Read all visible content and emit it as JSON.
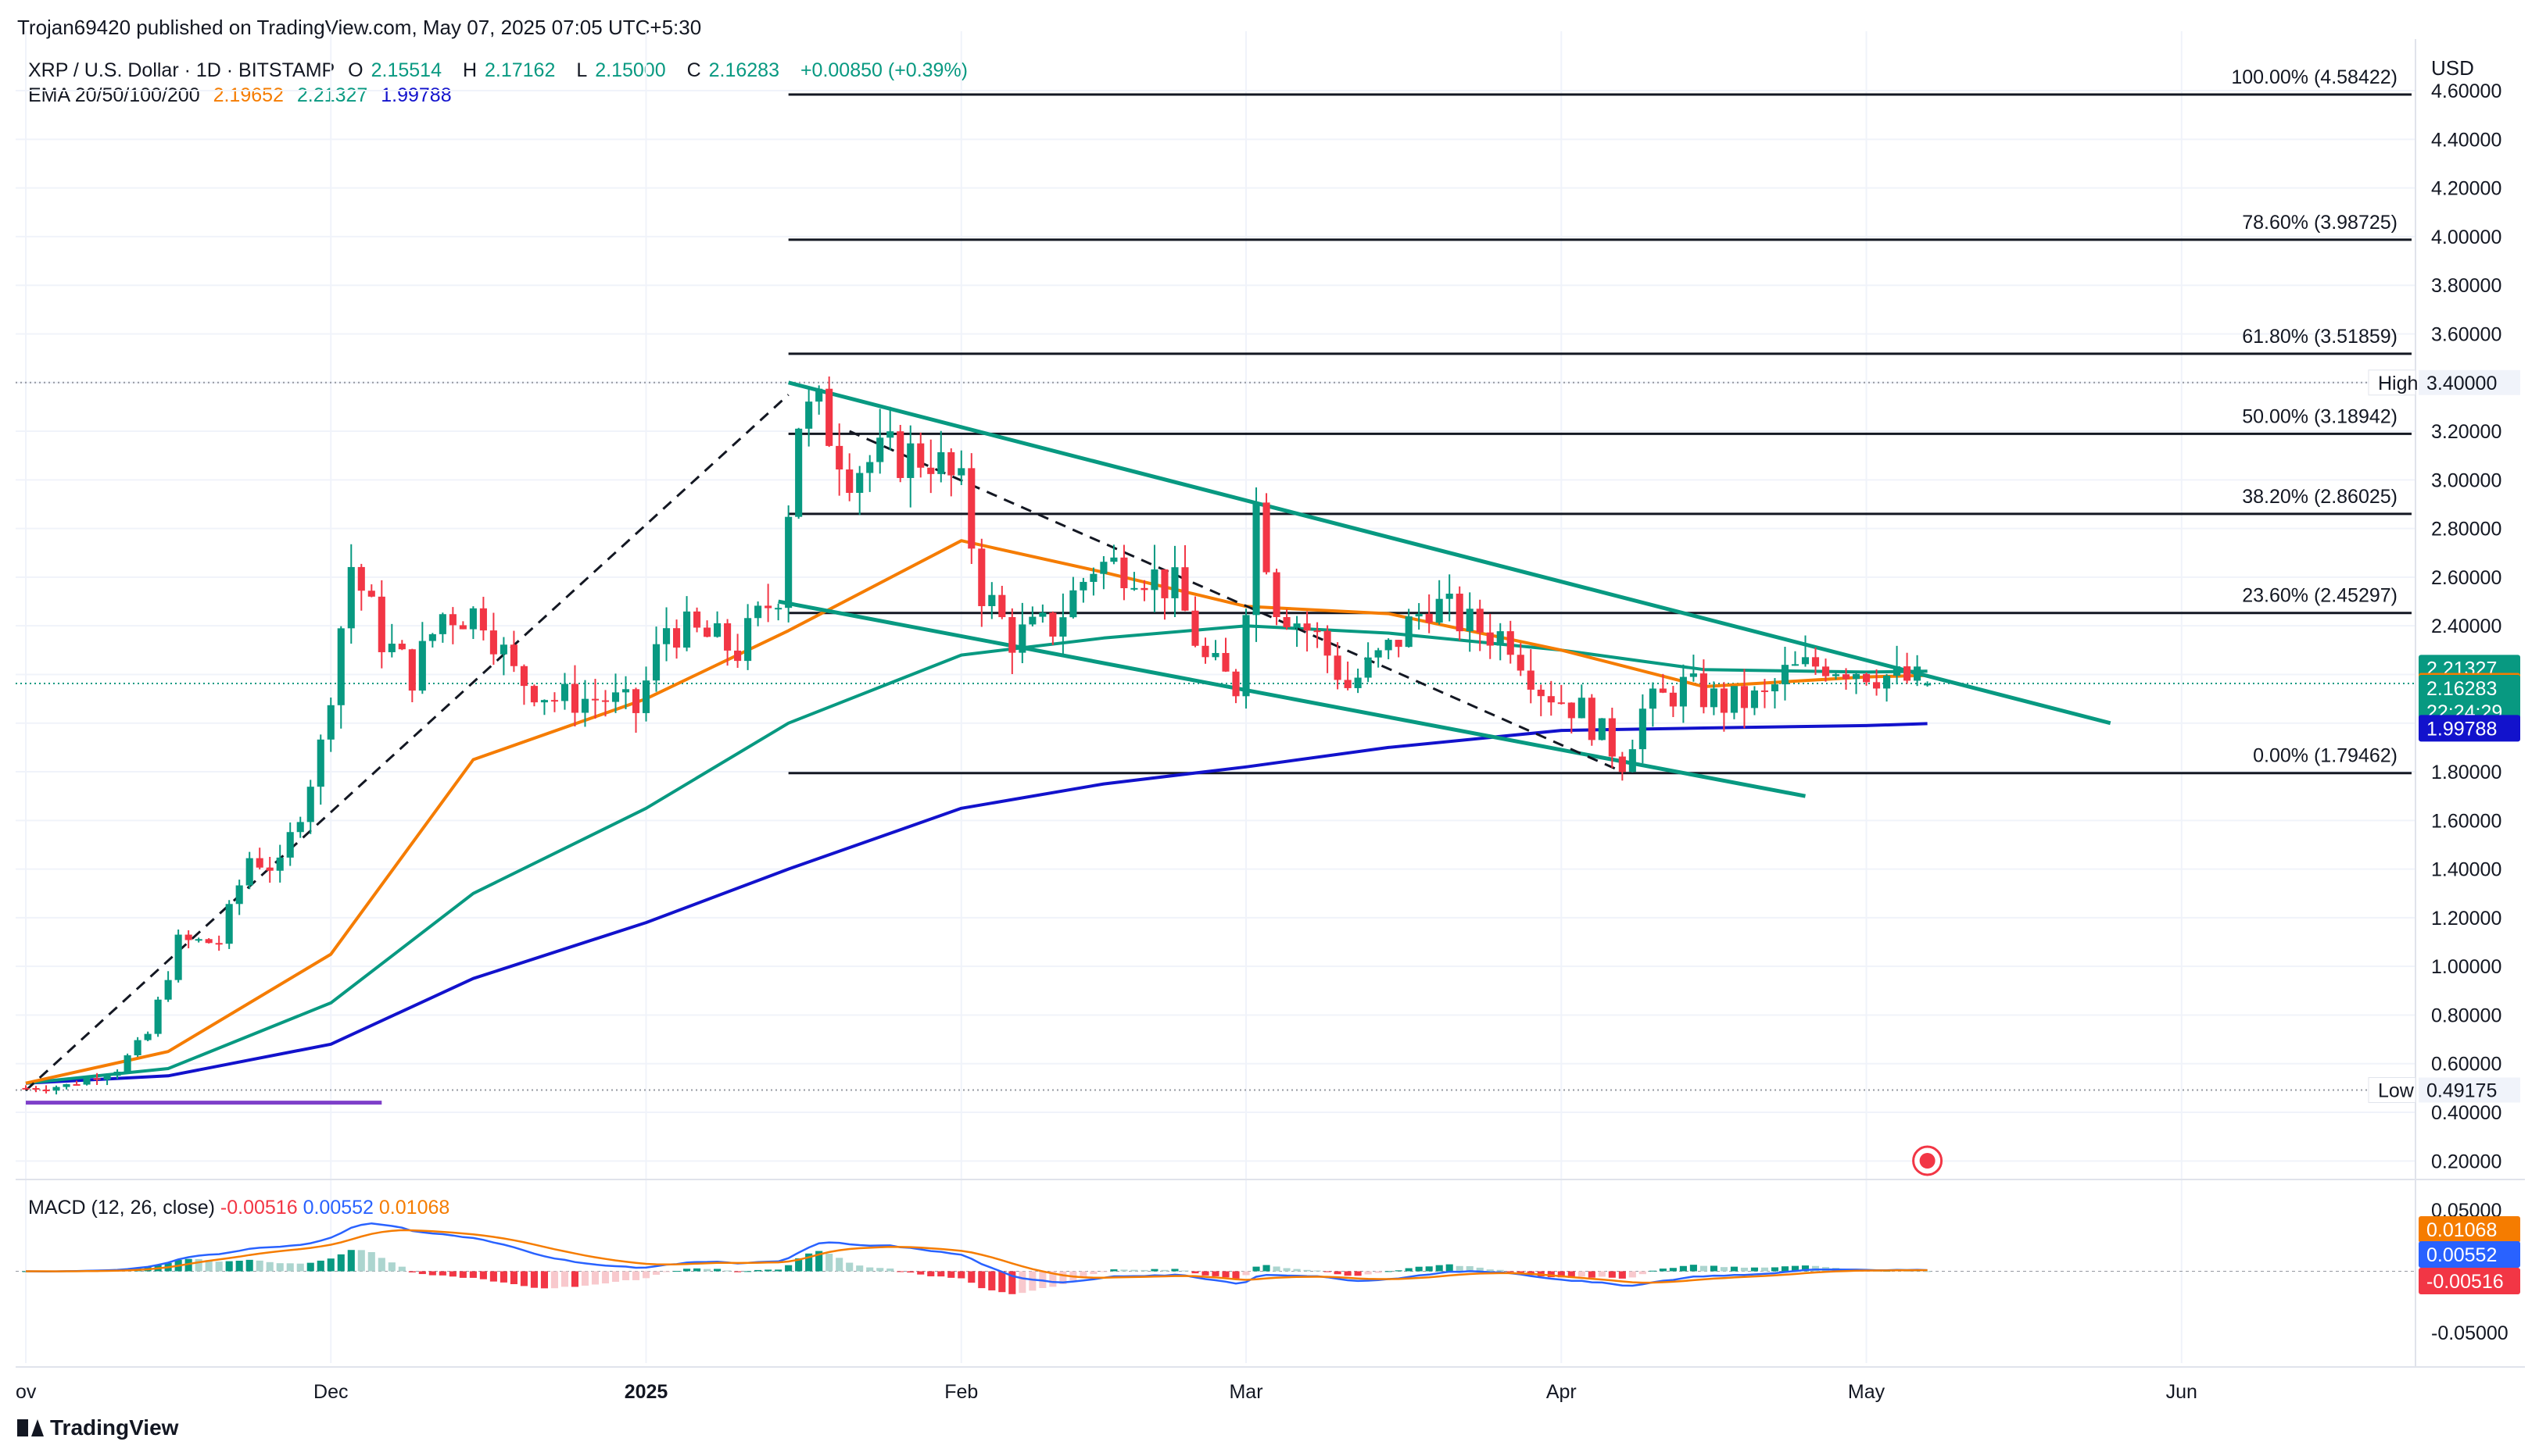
{
  "publisher_line": "Trojan69420 published on TradingView.com, May 07, 2025 07:05 UTC+5:30",
  "symbol": {
    "name": "XRP / U.S. Dollar · 1D · BITSTAMP",
    "open_label": "O",
    "open": "2.15514",
    "high_label": "H",
    "high": "2.17162",
    "low_label": "L",
    "low": "2.15000",
    "close_label": "C",
    "close": "2.16283",
    "change": "+0.00850 (+0.39%)"
  },
  "ema_legend": {
    "label": "EMA 20/50/100/200",
    "v20": "2.19652",
    "v50": "2.21327",
    "v200": "1.99788"
  },
  "macd_legend": {
    "label": "MACD (12, 26, close)",
    "hist": "-0.00516",
    "macd": "0.00552",
    "signal": "0.01068"
  },
  "currency": "USD",
  "brand": "TradingView",
  "colors": {
    "up": "#089981",
    "down": "#f23645",
    "up_light": "#acd5cf",
    "down_light": "#f8c9cd",
    "ema20": "#f57c00",
    "ema50": "#089981",
    "ema200": "#1212cc",
    "purple": "#7e3fc9",
    "grid": "#f0f3fa",
    "text": "#131722",
    "macd_line": "#2962ff",
    "signal_line": "#f57c00"
  },
  "chart_data": {
    "type": "candlestick",
    "title": "XRP / U.S. Dollar · 1D · BITSTAMP",
    "x_ticks": [
      "ov",
      "Dec",
      "2025",
      "Feb",
      "Mar",
      "Apr",
      "May",
      "Jun"
    ],
    "y_ticks": [
      "4.60000",
      "4.40000",
      "4.20000",
      "4.00000",
      "3.80000",
      "3.60000",
      "3.40000",
      "3.20000",
      "3.00000",
      "2.80000",
      "2.60000",
      "2.40000",
      "2.20000",
      "2.00000",
      "1.80000",
      "1.60000",
      "1.40000",
      "1.20000",
      "1.00000",
      "0.80000",
      "0.60000",
      "0.40000",
      "0.20000"
    ],
    "ylim": [
      0.14,
      4.78
    ],
    "ohlc_anchors": [
      {
        "date": "2024-11-01",
        "c": 0.5
      },
      {
        "date": "2024-11-05",
        "c": 0.51
      },
      {
        "date": "2024-11-10",
        "c": 0.58
      },
      {
        "date": "2024-11-13",
        "c": 0.72
      },
      {
        "date": "2024-11-16",
        "c": 1.1
      },
      {
        "date": "2024-11-20",
        "c": 1.1
      },
      {
        "date": "2024-11-23",
        "c": 1.45
      },
      {
        "date": "2024-11-26",
        "c": 1.4
      },
      {
        "date": "2024-11-30",
        "c": 1.9
      },
      {
        "date": "2024-12-03",
        "c": 2.65
      },
      {
        "date": "2024-12-06",
        "c": 2.35
      },
      {
        "date": "2024-12-09",
        "c": 2.2
      },
      {
        "date": "2024-12-12",
        "c": 2.45
      },
      {
        "date": "2024-12-16",
        "c": 2.45
      },
      {
        "date": "2024-12-19",
        "c": 2.2
      },
      {
        "date": "2024-12-23",
        "c": 2.1
      },
      {
        "date": "2024-12-28",
        "c": 2.1
      },
      {
        "date": "2024-12-31",
        "c": 2.05
      },
      {
        "date": "2025-01-03",
        "c": 2.4
      },
      {
        "date": "2025-01-07",
        "c": 2.35
      },
      {
        "date": "2025-01-10",
        "c": 2.3
      },
      {
        "date": "2025-01-14",
        "c": 2.55
      },
      {
        "date": "2025-01-16",
        "c": 3.25
      },
      {
        "date": "2025-01-18",
        "c": 3.28
      },
      {
        "date": "2025-01-21",
        "c": 3.05
      },
      {
        "date": "2025-01-25",
        "c": 3.1
      },
      {
        "date": "2025-01-29",
        "c": 3.1
      },
      {
        "date": "2025-02-01",
        "c": 2.95
      },
      {
        "date": "2025-02-03",
        "c": 2.55
      },
      {
        "date": "2025-02-06",
        "c": 2.35
      },
      {
        "date": "2025-02-10",
        "c": 2.4
      },
      {
        "date": "2025-02-14",
        "c": 2.65
      },
      {
        "date": "2025-02-18",
        "c": 2.65
      },
      {
        "date": "2025-02-22",
        "c": 2.55
      },
      {
        "date": "2025-02-25",
        "c": 2.25
      },
      {
        "date": "2025-02-28",
        "c": 2.15
      },
      {
        "date": "2025-03-02",
        "c": 2.9
      },
      {
        "date": "2025-03-04",
        "c": 2.5
      },
      {
        "date": "2025-03-08",
        "c": 2.35
      },
      {
        "date": "2025-03-11",
        "c": 2.15
      },
      {
        "date": "2025-03-15",
        "c": 2.3
      },
      {
        "date": "2025-03-19",
        "c": 2.5
      },
      {
        "date": "2025-03-23",
        "c": 2.4
      },
      {
        "date": "2025-03-27",
        "c": 2.35
      },
      {
        "date": "2025-03-30",
        "c": 2.15
      },
      {
        "date": "2025-04-03",
        "c": 2.05
      },
      {
        "date": "2025-04-07",
        "c": 1.85
      },
      {
        "date": "2025-04-09",
        "c": 2.05
      },
      {
        "date": "2025-04-13",
        "c": 2.15
      },
      {
        "date": "2025-04-17",
        "c": 2.08
      },
      {
        "date": "2025-04-21",
        "c": 2.1
      },
      {
        "date": "2025-04-23",
        "c": 2.2
      },
      {
        "date": "2025-04-27",
        "c": 2.25
      },
      {
        "date": "2025-05-01",
        "c": 2.22
      },
      {
        "date": "2025-05-04",
        "c": 2.18
      },
      {
        "date": "2025-05-07",
        "c": 2.16283
      }
    ],
    "ema": {
      "ema20": [
        [
          "2024-11-01",
          0.52
        ],
        [
          "2024-11-15",
          0.65
        ],
        [
          "2024-12-01",
          1.05
        ],
        [
          "2024-12-15",
          1.85
        ],
        [
          "2025-01-01",
          2.1
        ],
        [
          "2025-01-15",
          2.38
        ],
        [
          "2025-02-01",
          2.75
        ],
        [
          "2025-02-15",
          2.62
        ],
        [
          "2025-03-01",
          2.48
        ],
        [
          "2025-03-15",
          2.45
        ],
        [
          "2025-04-01",
          2.3
        ],
        [
          "2025-04-15",
          2.15
        ],
        [
          "2025-05-01",
          2.19
        ],
        [
          "2025-05-07",
          2.19652
        ]
      ],
      "ema50": [
        [
          "2024-11-01",
          0.52
        ],
        [
          "2024-11-15",
          0.58
        ],
        [
          "2024-12-01",
          0.85
        ],
        [
          "2024-12-15",
          1.3
        ],
        [
          "2025-01-01",
          1.65
        ],
        [
          "2025-01-15",
          2.0
        ],
        [
          "2025-02-01",
          2.28
        ],
        [
          "2025-02-15",
          2.35
        ],
        [
          "2025-03-01",
          2.4
        ],
        [
          "2025-03-15",
          2.37
        ],
        [
          "2025-04-01",
          2.3
        ],
        [
          "2025-04-15",
          2.22
        ],
        [
          "2025-05-01",
          2.21
        ],
        [
          "2025-05-07",
          2.21327
        ]
      ],
      "ema200": [
        [
          "2024-11-01",
          0.52
        ],
        [
          "2024-11-15",
          0.55
        ],
        [
          "2024-12-01",
          0.68
        ],
        [
          "2024-12-15",
          0.95
        ],
        [
          "2025-01-01",
          1.18
        ],
        [
          "2025-01-15",
          1.4
        ],
        [
          "2025-02-01",
          1.65
        ],
        [
          "2025-02-15",
          1.75
        ],
        [
          "2025-03-01",
          1.82
        ],
        [
          "2025-03-15",
          1.9
        ],
        [
          "2025-04-01",
          1.97
        ],
        [
          "2025-04-15",
          1.98
        ],
        [
          "2025-05-01",
          1.99
        ],
        [
          "2025-05-07",
          1.99788
        ]
      ]
    },
    "fib_levels": [
      {
        "label": "100.00% (4.58422)",
        "value": 4.58422
      },
      {
        "label": "78.60% (3.98725)",
        "value": 3.98725
      },
      {
        "label": "61.80% (3.51859)",
        "value": 3.51859
      },
      {
        "label": "50.00% (3.18942)",
        "value": 3.18942
      },
      {
        "label": "38.20% (2.86025)",
        "value": 2.86025
      },
      {
        "label": "23.60% (2.45297)",
        "value": 2.45297
      },
      {
        "label": "0.00% (1.79462)",
        "value": 1.79462
      }
    ],
    "high": {
      "label": "High",
      "value": "3.40000",
      "y": 3.4
    },
    "low": {
      "label": "Low",
      "value": "0.49175",
      "y": 0.49175
    },
    "price_tags": [
      {
        "value": "2.21327",
        "y": 2.21327,
        "color": "#089981"
      },
      {
        "value": "2.19652",
        "y": 2.19652,
        "color": "#f57c00"
      },
      {
        "value": "2.16283",
        "y": 2.16283,
        "color": "#089981",
        "sub": "22:24:29"
      },
      {
        "value": "1.99788",
        "y": 1.99788,
        "color": "#1212cc"
      }
    ],
    "trendlines": [
      {
        "from": [
          "2025-01-15",
          3.4
        ],
        "to": [
          "2025-05-25",
          2.0
        ],
        "color": "#089981",
        "style": "solid"
      },
      {
        "from": [
          "2025-01-14",
          2.5
        ],
        "to": [
          "2025-04-25",
          1.7
        ],
        "color": "#089981",
        "style": "solid"
      },
      {
        "from": [
          "2024-11-01",
          0.49
        ],
        "to": [
          "2025-01-15",
          3.35
        ],
        "color": "#131722",
        "style": "dashed"
      },
      {
        "from": [
          "2025-01-21",
          3.2
        ],
        "to": [
          "2025-04-07",
          1.8
        ],
        "color": "#131722",
        "style": "dashed"
      },
      {
        "from": [
          "2024-11-01",
          0.44
        ],
        "to": [
          "2024-12-06",
          0.44
        ],
        "color": "#7e3fc9",
        "style": "solid"
      }
    ],
    "macd": {
      "y_ticks": [
        "0.05000",
        "-0.05000"
      ],
      "ylim": [
        -0.075,
        0.075
      ],
      "price_tags": [
        {
          "value": "0.01068",
          "y": 0.01068,
          "color": "#f57c00"
        },
        {
          "value": "0.00552",
          "y": 0.00552,
          "color": "#2962ff"
        },
        {
          "value": "-0.00516",
          "y": -0.00516,
          "color": "#f23645"
        }
      ]
    }
  }
}
